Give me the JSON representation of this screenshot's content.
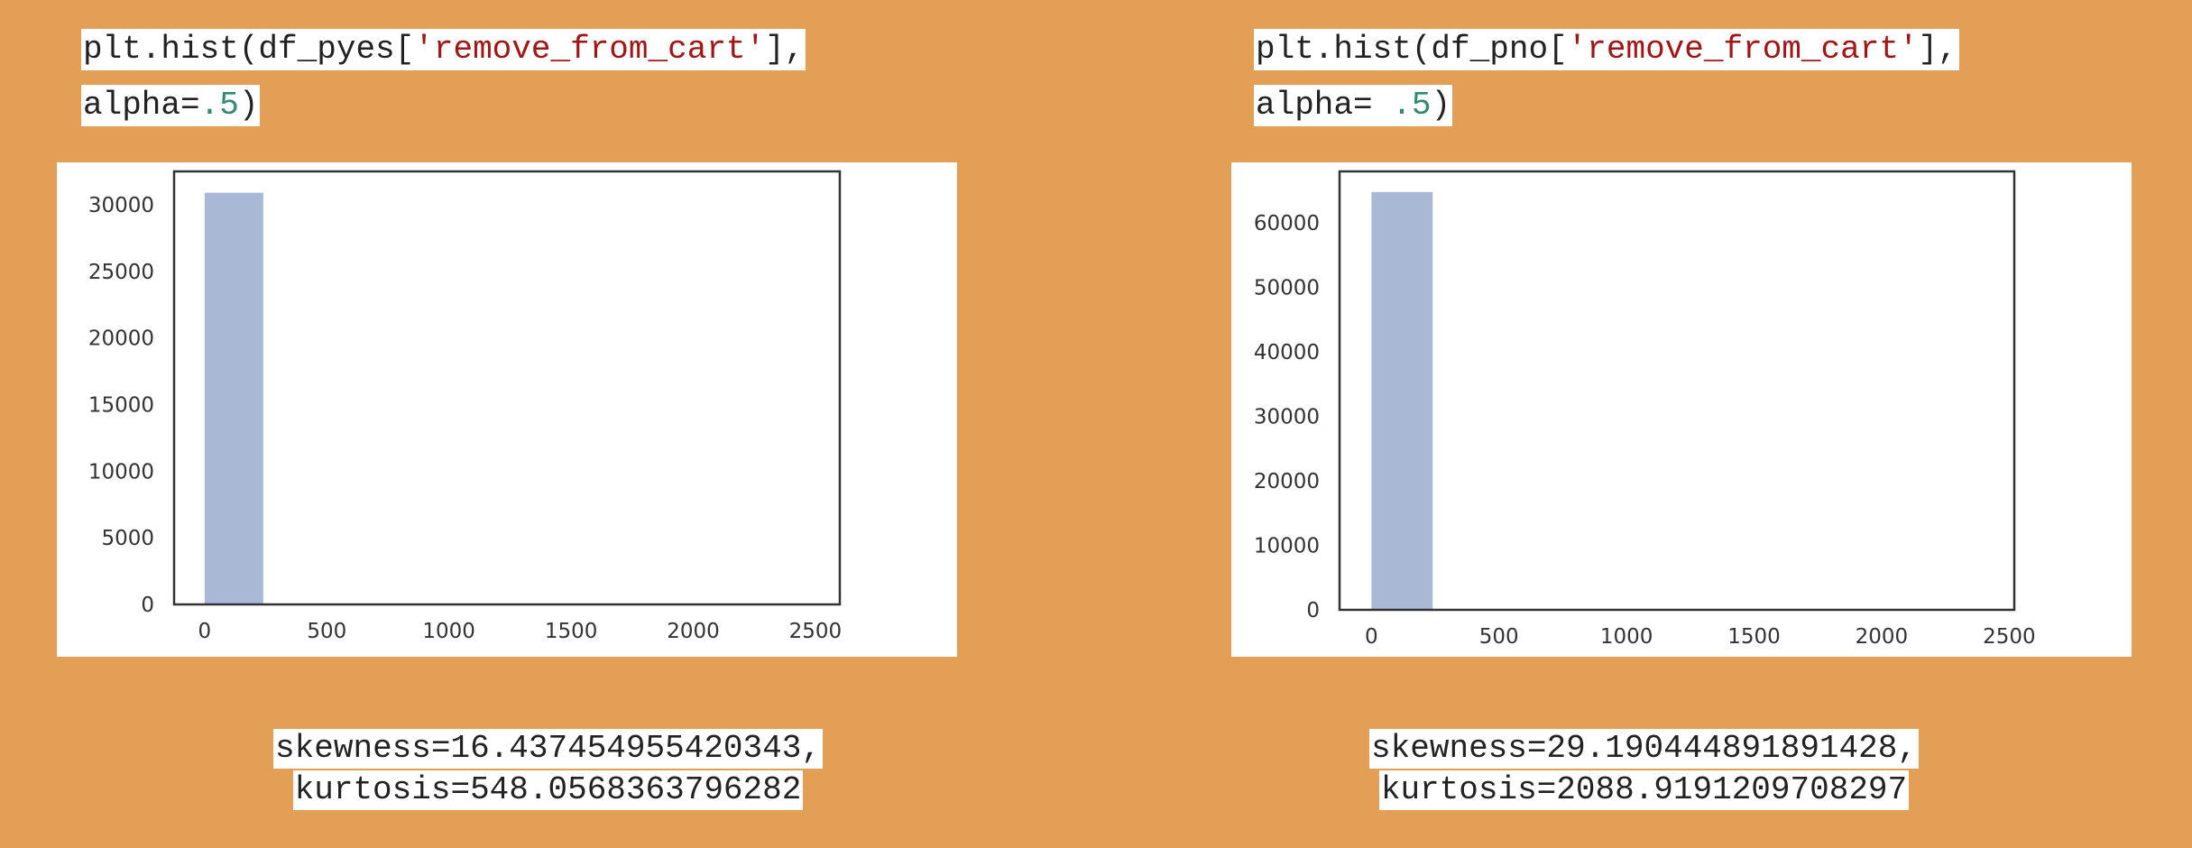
{
  "background": "#e29f55",
  "panels": [
    {
      "code": {
        "line1_prefix": "plt.hist(df_pyes[",
        "line1_string": "'remove_from_cart'",
        "line1_suffix": "],",
        "line2_prefix": "alpha=",
        "line2_number": ".5",
        "line2_suffix": ")"
      },
      "stats": {
        "skewness": "skewness=16.437454955420343,",
        "kurtosis": "kurtosis=548.0568363796282"
      }
    },
    {
      "code": {
        "line1_prefix": "plt.hist(df_pno[",
        "line1_string": "'remove_from_cart'",
        "line1_suffix": "],",
        "line2_prefix": "alpha= ",
        "line2_number": ".5",
        "line2_suffix": ")"
      },
      "stats": {
        "skewness": "skewness=29.190444891891428,",
        "kurtosis": "kurtosis=2088.9191209708297"
      }
    }
  ],
  "chart_data": [
    {
      "type": "bar",
      "title": "",
      "xlabel": "",
      "ylabel": "",
      "bar_color": "#a8b8d5",
      "bins": [
        {
          "x0": 0,
          "x1": 240,
          "count": 30900
        }
      ],
      "xlim": [
        -125,
        2600
      ],
      "ylim": [
        0,
        32500
      ],
      "xticks": [
        0,
        500,
        1000,
        1500,
        2000,
        2500
      ],
      "yticks": [
        0,
        5000,
        10000,
        15000,
        20000,
        25000,
        30000
      ],
      "grid": false
    },
    {
      "type": "bar",
      "title": "",
      "xlabel": "",
      "ylabel": "",
      "bar_color": "#a8b8d5",
      "bins": [
        {
          "x0": 0,
          "x1": 240,
          "count": 64800
        }
      ],
      "xlim": [
        -125,
        2520
      ],
      "ylim": [
        0,
        68000
      ],
      "xticks": [
        0,
        500,
        1000,
        1500,
        2000,
        2500
      ],
      "yticks": [
        0,
        10000,
        20000,
        30000,
        40000,
        50000,
        60000
      ],
      "grid": false
    }
  ]
}
